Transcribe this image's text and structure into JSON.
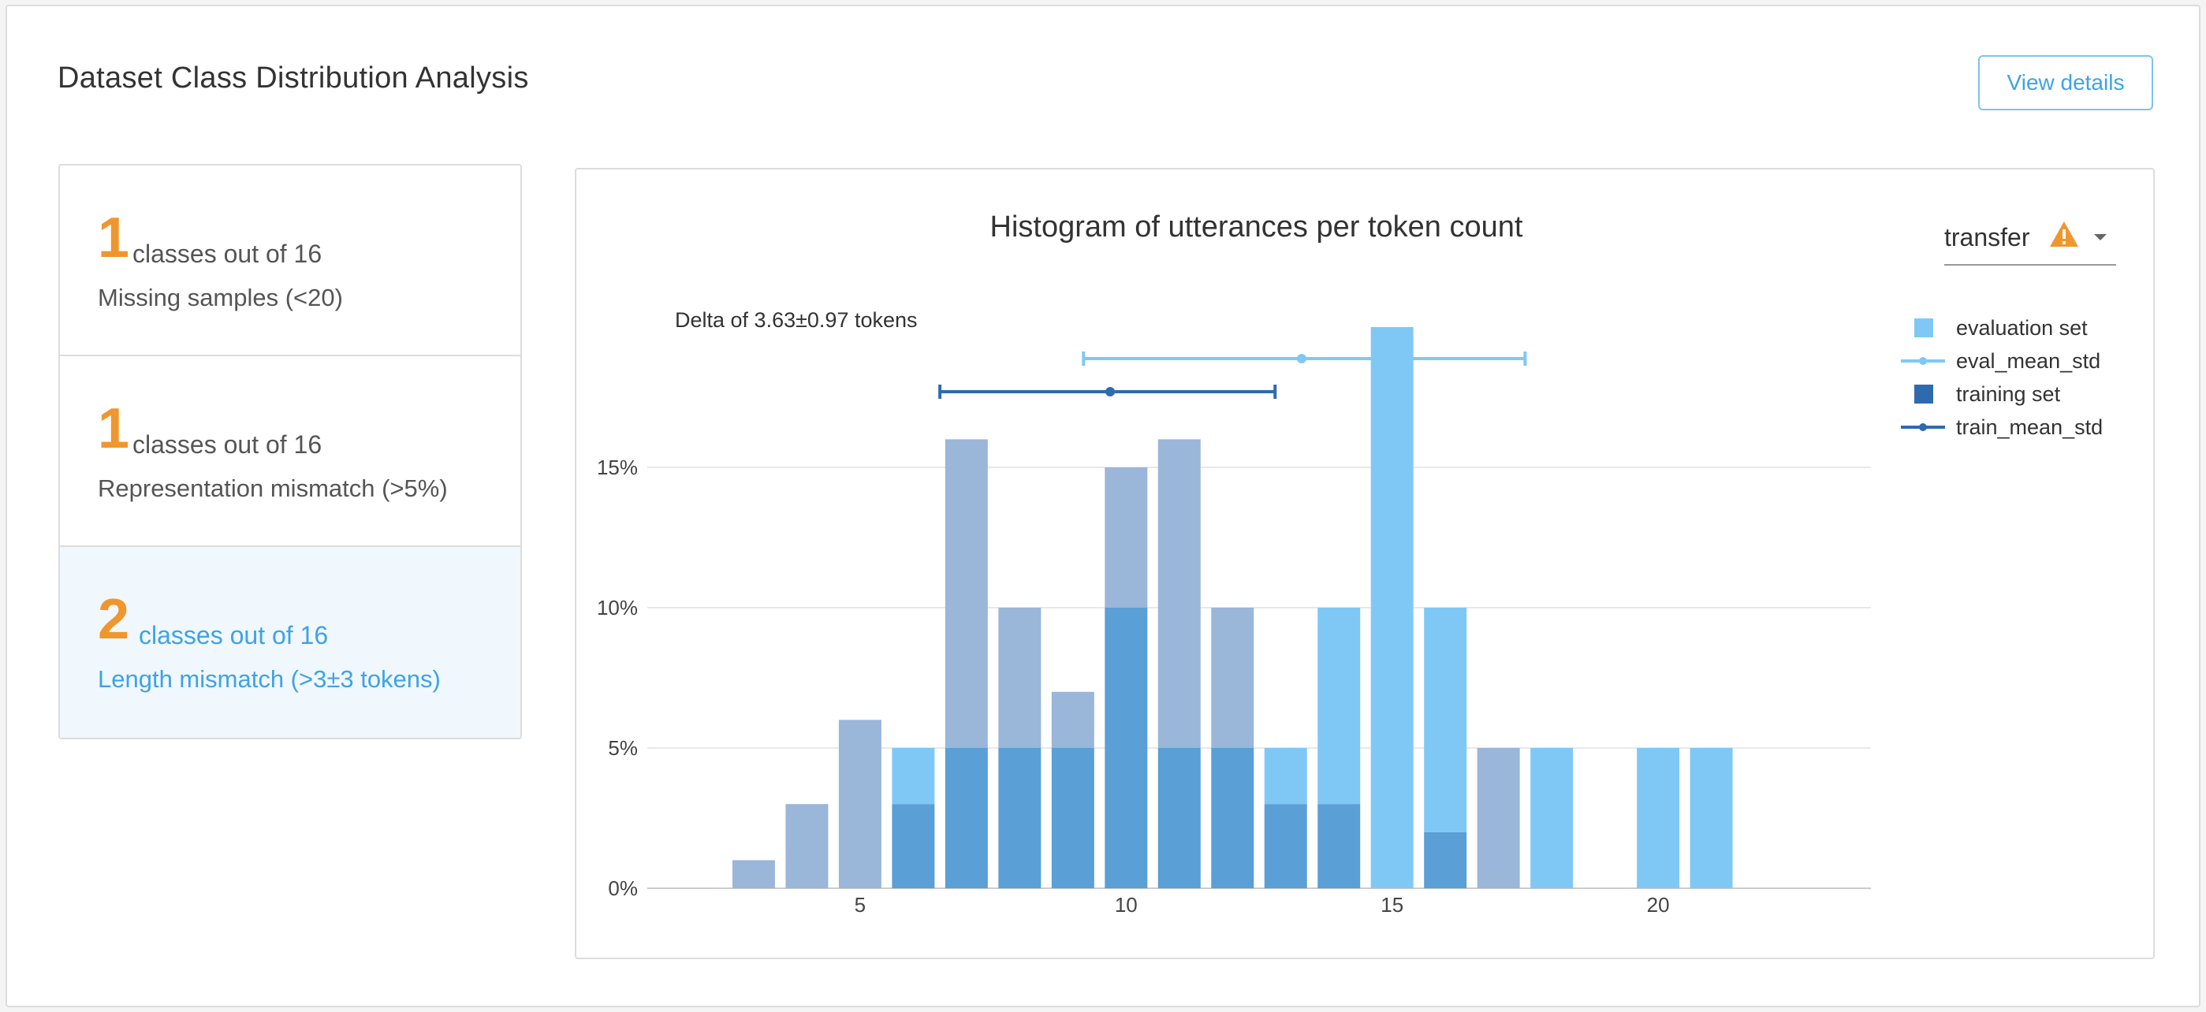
{
  "header": {
    "title": "Dataset Class Distribution Analysis",
    "view_details_label": "View details"
  },
  "cards": [
    {
      "count": "1",
      "suffix": "classes out of 16",
      "description": "Missing samples (<20)"
    },
    {
      "count": "1",
      "suffix": "classes out of 16",
      "description": "Representation mismatch (>5%)"
    },
    {
      "count": "2",
      "suffix": "classes out of 16",
      "description": "Length mismatch (>3±3 tokens)"
    }
  ],
  "dropdown": {
    "selected": "transfer",
    "icons": [
      "warning-icon",
      "caret-down-icon"
    ]
  },
  "colors": {
    "accent": "#3ea3e6",
    "warning": "#f0962e",
    "eval": "#7fc8f6",
    "train": "#3a77b6",
    "overlap": "#5a9fd6"
  },
  "chart_data": {
    "type": "bar",
    "title": "Histogram of utterances per token count",
    "annotation": "Delta of 3.63±0.97 tokens",
    "xlabel": "",
    "ylabel": "",
    "xlim": [
      1,
      24
    ],
    "ylim": [
      0,
      0.2
    ],
    "x_ticks": [
      5,
      10,
      15,
      20
    ],
    "x_tick_labels": [
      "5",
      "10",
      "15",
      "20"
    ],
    "y_ticks": [
      0,
      0.05,
      0.1,
      0.15
    ],
    "y_tick_labels": [
      "0%",
      "5%",
      "10%",
      "15%"
    ],
    "grid": true,
    "legend_position": "top-right",
    "x": [
      3,
      4,
      5,
      6,
      7,
      8,
      9,
      10,
      11,
      12,
      13,
      14,
      15,
      16,
      17,
      18,
      20,
      21
    ],
    "series": [
      {
        "name": "evaluation set",
        "values": [
          0,
          0,
          0,
          0.05,
          0.05,
          0.05,
          0.05,
          0.1,
          0.05,
          0.05,
          0.05,
          0.1,
          0.2,
          0.1,
          0,
          0.05,
          0.05,
          0.05
        ]
      },
      {
        "name": "training set",
        "values": [
          0.01,
          0.03,
          0.06,
          0.03,
          0.16,
          0.1,
          0.07,
          0.15,
          0.16,
          0.1,
          0.03,
          0.03,
          0,
          0.02,
          0.05,
          0,
          0,
          0
        ]
      }
    ],
    "mean_std": [
      {
        "name": "eval_mean_std",
        "mean": 13.3,
        "low": 9.2,
        "high": 17.5
      },
      {
        "name": "train_mean_std",
        "mean": 9.7,
        "low": 6.5,
        "high": 12.8
      }
    ]
  }
}
